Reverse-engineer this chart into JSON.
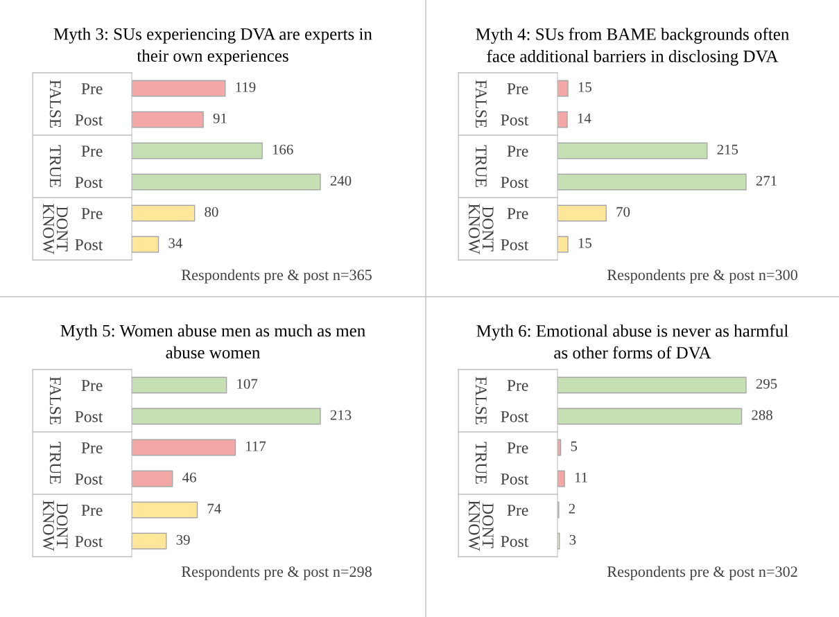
{
  "chart_data": [
    {
      "type": "bar",
      "orientation": "horizontal",
      "title": "Myth 3: SUs experiencing DVA are experts in\ntheir own experiences",
      "categories": [
        "Pre",
        "Post",
        "Pre",
        "Post",
        "Pre",
        "Post"
      ],
      "values": [
        119,
        91,
        166,
        240,
        80,
        34
      ],
      "colors": [
        "#f4a7a7",
        "#f4a7a7",
        "#c6e0b4",
        "#c6e0b4",
        "#ffe699",
        "#ffe699"
      ],
      "data_labels": true,
      "annotations": [
        "FALSE",
        "TRUE",
        "DONT\nKNOW",
        "Respondents pre & post n=365"
      ],
      "grid": false,
      "legend": false
    },
    {
      "type": "bar",
      "orientation": "horizontal",
      "title": "Myth 4: SUs from BAME backgrounds often\nface additional barriers in disclosing DVA",
      "categories": [
        "Pre",
        "Post",
        "Pre",
        "Post",
        "Pre",
        "Post"
      ],
      "values": [
        15,
        14,
        215,
        271,
        70,
        15
      ],
      "colors": [
        "#f4a7a7",
        "#f4a7a7",
        "#c6e0b4",
        "#c6e0b4",
        "#ffe699",
        "#ffe699"
      ],
      "data_labels": true,
      "annotations": [
        "FALSE",
        "TRUE",
        "DONT\nKNOW",
        "Respondents pre & post n=300"
      ],
      "grid": false,
      "legend": false
    },
    {
      "type": "bar",
      "orientation": "horizontal",
      "title": "Myth 5: Women abuse men as much as men\nabuse women",
      "categories": [
        "Pre",
        "Post",
        "Pre",
        "Post",
        "Pre",
        "Post"
      ],
      "values": [
        107,
        213,
        117,
        46,
        74,
        39
      ],
      "colors": [
        "#c6e0b4",
        "#c6e0b4",
        "#f4a7a7",
        "#f4a7a7",
        "#ffe699",
        "#ffe699"
      ],
      "data_labels": true,
      "annotations": [
        "FALSE",
        "TRUE",
        "DONT\nKNOW",
        "Respondents pre & post n=298"
      ],
      "grid": false,
      "legend": false
    },
    {
      "type": "bar",
      "orientation": "horizontal",
      "title": "Myth 6: Emotional abuse is never as harmful\nas other forms of DVA",
      "categories": [
        "Pre",
        "Post",
        "Pre",
        "Post",
        "Pre",
        "Post"
      ],
      "values": [
        295,
        288,
        5,
        11,
        2,
        3
      ],
      "colors": [
        "#c6e0b4",
        "#c6e0b4",
        "#f4a7a7",
        "#f4a7a7",
        "#ffe699",
        "#ffe699"
      ],
      "data_labels": true,
      "annotations": [
        "FALSE",
        "TRUE",
        "DONT\nKNOW",
        "Respondents pre & post n=302"
      ],
      "grid": false,
      "legend": false
    }
  ]
}
